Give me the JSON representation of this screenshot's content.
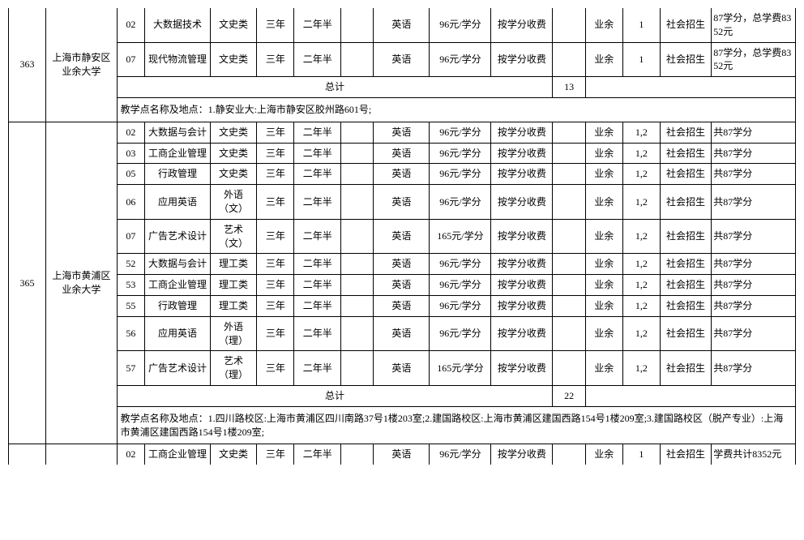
{
  "schools": [
    {
      "code": "363",
      "name": "上海市静安区业余大学",
      "rows": [
        {
          "pcode": "02",
          "pname": "大数据技术",
          "cat": "文史类",
          "dur": "三年",
          "durMin": "二年半",
          "blank": "",
          "lang": "英语",
          "price": "96元/学分",
          "charge": "按学分收费",
          "b2": "",
          "mode": "业余",
          "site": "1",
          "enroll": "社会招生",
          "remark": "87学分，总学费8352元"
        },
        {
          "pcode": "07",
          "pname": "现代物流管理",
          "cat": "文史类",
          "dur": "三年",
          "durMin": "二年半",
          "blank": "",
          "lang": "英语",
          "price": "96元/学分",
          "charge": "按学分收费",
          "b2": "",
          "mode": "业余",
          "site": "1",
          "enroll": "社会招生",
          "remark": "87学分，总学费8352元"
        }
      ],
      "totalLabel": "总计",
      "totalNum": "13",
      "note": "教学点名称及地点：1.静安业大:上海市静安区胶州路601号;"
    },
    {
      "code": "365",
      "name": "上海市黄浦区业余大学",
      "rows": [
        {
          "pcode": "02",
          "pname": "大数据与会计",
          "cat": "文史类",
          "dur": "三年",
          "durMin": "二年半",
          "blank": "",
          "lang": "英语",
          "price": "96元/学分",
          "charge": "按学分收费",
          "b2": "",
          "mode": "业余",
          "site": "1,2",
          "enroll": "社会招生",
          "remark": "共87学分"
        },
        {
          "pcode": "03",
          "pname": "工商企业管理",
          "cat": "文史类",
          "dur": "三年",
          "durMin": "二年半",
          "blank": "",
          "lang": "英语",
          "price": "96元/学分",
          "charge": "按学分收费",
          "b2": "",
          "mode": "业余",
          "site": "1,2",
          "enroll": "社会招生",
          "remark": "共87学分"
        },
        {
          "pcode": "05",
          "pname": "行政管理",
          "cat": "文史类",
          "dur": "三年",
          "durMin": "二年半",
          "blank": "",
          "lang": "英语",
          "price": "96元/学分",
          "charge": "按学分收费",
          "b2": "",
          "mode": "业余",
          "site": "1,2",
          "enroll": "社会招生",
          "remark": "共87学分"
        },
        {
          "pcode": "06",
          "pname": "应用英语",
          "cat": "外语（文）",
          "dur": "三年",
          "durMin": "二年半",
          "blank": "",
          "lang": "英语",
          "price": "96元/学分",
          "charge": "按学分收费",
          "b2": "",
          "mode": "业余",
          "site": "1,2",
          "enroll": "社会招生",
          "remark": "共87学分"
        },
        {
          "pcode": "07",
          "pname": "广告艺术设计",
          "cat": "艺术（文）",
          "dur": "三年",
          "durMin": "二年半",
          "blank": "",
          "lang": "英语",
          "price": "165元/学分",
          "charge": "按学分收费",
          "b2": "",
          "mode": "业余",
          "site": "1,2",
          "enroll": "社会招生",
          "remark": "共87学分"
        },
        {
          "pcode": "52",
          "pname": "大数据与会计",
          "cat": "理工类",
          "dur": "三年",
          "durMin": "二年半",
          "blank": "",
          "lang": "英语",
          "price": "96元/学分",
          "charge": "按学分收费",
          "b2": "",
          "mode": "业余",
          "site": "1,2",
          "enroll": "社会招生",
          "remark": "共87学分"
        },
        {
          "pcode": "53",
          "pname": "工商企业管理",
          "cat": "理工类",
          "dur": "三年",
          "durMin": "二年半",
          "blank": "",
          "lang": "英语",
          "price": "96元/学分",
          "charge": "按学分收费",
          "b2": "",
          "mode": "业余",
          "site": "1,2",
          "enroll": "社会招生",
          "remark": "共87学分"
        },
        {
          "pcode": "55",
          "pname": "行政管理",
          "cat": "理工类",
          "dur": "三年",
          "durMin": "二年半",
          "blank": "",
          "lang": "英语",
          "price": "96元/学分",
          "charge": "按学分收费",
          "b2": "",
          "mode": "业余",
          "site": "1,2",
          "enroll": "社会招生",
          "remark": "共87学分"
        },
        {
          "pcode": "56",
          "pname": "应用英语",
          "cat": "外语（理）",
          "dur": "三年",
          "durMin": "二年半",
          "blank": "",
          "lang": "英语",
          "price": "96元/学分",
          "charge": "按学分收费",
          "b2": "",
          "mode": "业余",
          "site": "1,2",
          "enroll": "社会招生",
          "remark": "共87学分"
        },
        {
          "pcode": "57",
          "pname": "广告艺术设计",
          "cat": "艺术（理）",
          "dur": "三年",
          "durMin": "二年半",
          "blank": "",
          "lang": "英语",
          "price": "165元/学分",
          "charge": "按学分收费",
          "b2": "",
          "mode": "业余",
          "site": "1,2",
          "enroll": "社会招生",
          "remark": "共87学分"
        }
      ],
      "totalLabel": "总计",
      "totalNum": "22",
      "note": "教学点名称及地点：1.四川路校区:上海市黄浦区四川南路37号1楼203室;2.建国路校区:上海市黄浦区建国西路154号1楼209室;3.建国路校区（脱产专业）:上海市黄浦区建国西路154号1楼209室;"
    },
    {
      "code": "",
      "name": "",
      "rows": [
        {
          "pcode": "02",
          "pname": "工商企业管理",
          "cat": "文史类",
          "dur": "三年",
          "durMin": "二年半",
          "blank": "",
          "lang": "英语",
          "price": "96元/学分",
          "charge": "按学分收费",
          "b2": "",
          "mode": "业余",
          "site": "1",
          "enroll": "社会招生",
          "remark": "学费共计8352元"
        }
      ],
      "partial": true
    }
  ]
}
